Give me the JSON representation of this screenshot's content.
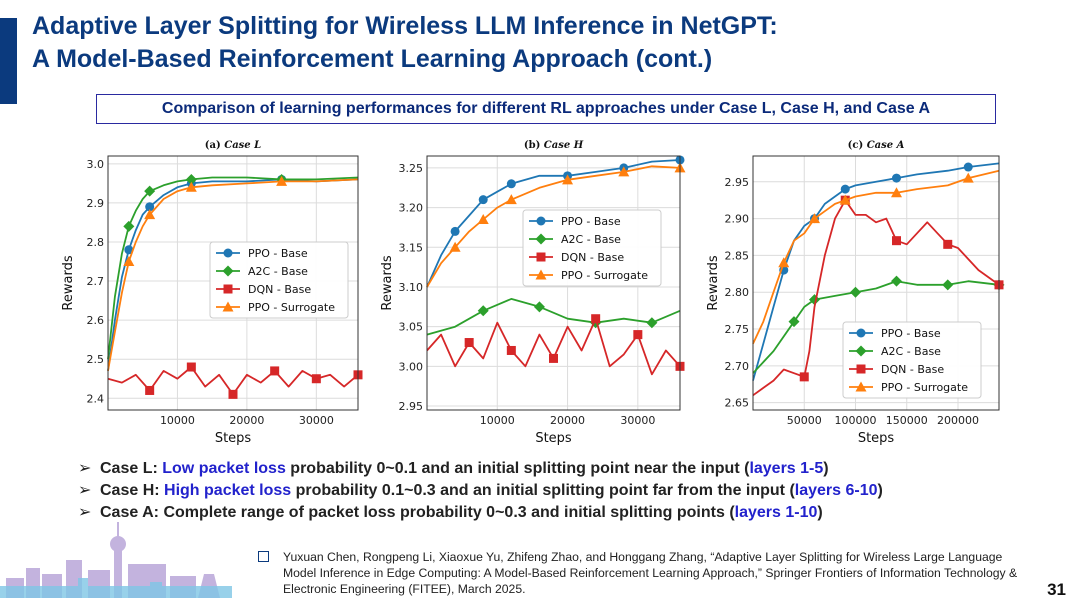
{
  "slide": {
    "title_line1": "Adaptive Layer Splitting for Wireless LLM Inference in NetGPT:",
    "title_line2": "A Model-Based Reinforcement Learning Approach (cont.)",
    "subtitle": "Comparison of learning performances for different RL approaches under Case L, Case H, and Case A",
    "page_number": "31"
  },
  "bullets": [
    {
      "prefix": "Case L: ",
      "highlight": "Low packet loss",
      "middle": " probability 0~0.1 and an initial splitting point near the input (",
      "highlight2": "layers 1-5",
      "suffix": ")"
    },
    {
      "prefix": "Case H: ",
      "highlight": "High packet loss",
      "middle": " probability 0.1~0.3 and an initial splitting point far from the input (",
      "highlight2": "layers 6-10",
      "suffix": ")"
    },
    {
      "prefix": "Case A: ",
      "highlight": "",
      "middle": "Complete range of packet loss probability 0~0.3 and initial splitting points (",
      "highlight2": "layers 1-10",
      "suffix": ")"
    }
  ],
  "reference": {
    "text": "Yuxuan Chen, Rongpeng Li, Xiaoxue Yu, Zhifeng Zhao, and Honggang Zhang, “Adaptive Layer Splitting for Wireless Large Language Model Inference in Edge Computing: A Model-Based Reinforcement Learning Approach,” Springer Frontiers of Information Technology & Electronic Engineering (FITEE), March 2025."
  },
  "colors": {
    "ppo_base": "#1f77b4",
    "a2c_base": "#2ca02c",
    "dqn_base": "#d62728",
    "ppo_surrogate": "#ff7f0e",
    "title": "#0b3a7e"
  },
  "chart_data": [
    {
      "type": "line",
      "panel": "(a)",
      "title": "Case L",
      "xlabel": "Steps",
      "ylabel": "Rewards",
      "xlim": [
        0,
        36000
      ],
      "ylim": [
        2.37,
        3.02
      ],
      "xticks": [
        10000,
        20000,
        30000
      ],
      "yticks": [
        2.4,
        2.5,
        2.6,
        2.7,
        2.8,
        2.9,
        3.0
      ],
      "legend_position": "center-right",
      "series": [
        {
          "name": "PPO - Base",
          "color": "#1f77b4",
          "marker": "circle",
          "x": [
            0,
            1000,
            2000,
            3000,
            4000,
            5000,
            6000,
            8000,
            10000,
            12000,
            15000,
            20000,
            25000,
            30000,
            36000
          ],
          "y": [
            2.47,
            2.6,
            2.71,
            2.78,
            2.83,
            2.87,
            2.89,
            2.92,
            2.94,
            2.95,
            2.955,
            2.955,
            2.96,
            2.955,
            2.96
          ]
        },
        {
          "name": "A2C - Base",
          "color": "#2ca02c",
          "marker": "diamond",
          "x": [
            0,
            1000,
            2000,
            3000,
            4000,
            5000,
            6000,
            8000,
            10000,
            12000,
            15000,
            20000,
            25000,
            30000,
            36000
          ],
          "y": [
            2.5,
            2.66,
            2.77,
            2.84,
            2.88,
            2.91,
            2.93,
            2.945,
            2.955,
            2.96,
            2.965,
            2.965,
            2.96,
            2.96,
            2.965
          ]
        },
        {
          "name": "DQN - Base",
          "color": "#d62728",
          "marker": "square",
          "x": [
            0,
            2000,
            4000,
            6000,
            8000,
            10000,
            12000,
            14000,
            16000,
            18000,
            20000,
            22000,
            24000,
            26000,
            28000,
            30000,
            32000,
            34000,
            36000
          ],
          "y": [
            2.45,
            2.44,
            2.46,
            2.42,
            2.47,
            2.45,
            2.48,
            2.43,
            2.46,
            2.41,
            2.46,
            2.44,
            2.47,
            2.43,
            2.47,
            2.45,
            2.46,
            2.43,
            2.46
          ]
        },
        {
          "name": "PPO - Surrogate",
          "color": "#ff7f0e",
          "marker": "triangle",
          "x": [
            0,
            1000,
            2000,
            3000,
            4000,
            5000,
            6000,
            8000,
            10000,
            12000,
            15000,
            20000,
            25000,
            30000,
            36000
          ],
          "y": [
            2.47,
            2.57,
            2.67,
            2.75,
            2.8,
            2.84,
            2.87,
            2.91,
            2.93,
            2.94,
            2.945,
            2.95,
            2.955,
            2.955,
            2.96
          ]
        }
      ]
    },
    {
      "type": "line",
      "panel": "(b)",
      "title": "Case H",
      "xlabel": "Steps",
      "ylabel": "Rewards",
      "xlim": [
        0,
        36000
      ],
      "ylim": [
        2.945,
        3.265
      ],
      "xticks": [
        10000,
        20000,
        30000
      ],
      "yticks": [
        2.95,
        3.0,
        3.05,
        3.1,
        3.15,
        3.2,
        3.25
      ],
      "legend_position": "upper-right",
      "series": [
        {
          "name": "PPO - Base",
          "color": "#1f77b4",
          "marker": "circle",
          "x": [
            0,
            2000,
            4000,
            6000,
            8000,
            10000,
            12000,
            16000,
            20000,
            24000,
            28000,
            32000,
            36000
          ],
          "y": [
            3.1,
            3.14,
            3.17,
            3.19,
            3.21,
            3.22,
            3.23,
            3.24,
            3.24,
            3.245,
            3.25,
            3.258,
            3.26
          ]
        },
        {
          "name": "A2C - Base",
          "color": "#2ca02c",
          "marker": "diamond",
          "x": [
            0,
            4000,
            8000,
            12000,
            16000,
            20000,
            24000,
            28000,
            32000,
            36000
          ],
          "y": [
            3.04,
            3.05,
            3.07,
            3.085,
            3.075,
            3.06,
            3.055,
            3.06,
            3.055,
            3.07
          ]
        },
        {
          "name": "DQN - Base",
          "color": "#d62728",
          "marker": "square",
          "x": [
            0,
            2000,
            4000,
            6000,
            8000,
            10000,
            12000,
            14000,
            16000,
            18000,
            20000,
            22000,
            24000,
            26000,
            28000,
            30000,
            32000,
            34000,
            36000
          ],
          "y": [
            3.02,
            3.04,
            3.0,
            3.03,
            3.01,
            3.055,
            3.02,
            3.0,
            3.04,
            3.01,
            3.05,
            3.02,
            3.06,
            3.0,
            3.015,
            3.04,
            2.99,
            3.02,
            3.0
          ]
        },
        {
          "name": "PPO - Surrogate",
          "color": "#ff7f0e",
          "marker": "triangle",
          "x": [
            0,
            2000,
            4000,
            6000,
            8000,
            10000,
            12000,
            16000,
            20000,
            24000,
            28000,
            32000,
            36000
          ],
          "y": [
            3.1,
            3.13,
            3.15,
            3.17,
            3.185,
            3.2,
            3.21,
            3.225,
            3.235,
            3.24,
            3.245,
            3.252,
            3.25
          ]
        }
      ]
    },
    {
      "type": "line",
      "panel": "(c)",
      "title": "Case A",
      "xlabel": "Steps",
      "ylabel": "Rewards",
      "xlim": [
        0,
        240000
      ],
      "ylim": [
        2.64,
        2.985
      ],
      "xticks": [
        50000,
        100000,
        150000,
        200000
      ],
      "yticks": [
        2.65,
        2.7,
        2.75,
        2.8,
        2.85,
        2.9,
        2.95
      ],
      "legend_position": "lower-right",
      "series": [
        {
          "name": "PPO - Base",
          "color": "#1f77b4",
          "marker": "circle",
          "x": [
            0,
            10000,
            20000,
            30000,
            40000,
            50000,
            60000,
            70000,
            80000,
            90000,
            100000,
            120000,
            140000,
            160000,
            190000,
            210000,
            240000
          ],
          "y": [
            2.68,
            2.73,
            2.78,
            2.83,
            2.87,
            2.89,
            2.9,
            2.92,
            2.93,
            2.94,
            2.945,
            2.95,
            2.955,
            2.96,
            2.965,
            2.97,
            2.975
          ]
        },
        {
          "name": "A2C - Base",
          "color": "#2ca02c",
          "marker": "diamond",
          "x": [
            0,
            20000,
            40000,
            50000,
            60000,
            80000,
            100000,
            120000,
            140000,
            160000,
            190000,
            210000,
            240000
          ],
          "y": [
            2.69,
            2.72,
            2.76,
            2.78,
            2.79,
            2.795,
            2.8,
            2.805,
            2.815,
            2.81,
            2.81,
            2.815,
            2.81
          ]
        },
        {
          "name": "DQN - Base",
          "color": "#d62728",
          "marker": "square",
          "x": [
            0,
            10000,
            20000,
            30000,
            40000,
            50000,
            55000,
            60000,
            70000,
            80000,
            90000,
            100000,
            110000,
            120000,
            130000,
            140000,
            150000,
            160000,
            170000,
            180000,
            190000,
            200000,
            210000,
            220000,
            230000,
            240000
          ],
          "y": [
            2.66,
            2.67,
            2.68,
            2.695,
            2.69,
            2.685,
            2.72,
            2.78,
            2.85,
            2.9,
            2.925,
            2.905,
            2.905,
            2.895,
            2.9,
            2.87,
            2.865,
            2.88,
            2.895,
            2.88,
            2.865,
            2.86,
            2.845,
            2.83,
            2.82,
            2.81
          ]
        },
        {
          "name": "PPO - Surrogate",
          "color": "#ff7f0e",
          "marker": "triangle",
          "x": [
            0,
            10000,
            20000,
            30000,
            40000,
            50000,
            60000,
            70000,
            80000,
            90000,
            100000,
            120000,
            140000,
            160000,
            190000,
            210000,
            240000
          ],
          "y": [
            2.73,
            2.76,
            2.8,
            2.84,
            2.87,
            2.88,
            2.9,
            2.91,
            2.92,
            2.925,
            2.93,
            2.935,
            2.935,
            2.94,
            2.945,
            2.955,
            2.965
          ]
        }
      ]
    }
  ]
}
